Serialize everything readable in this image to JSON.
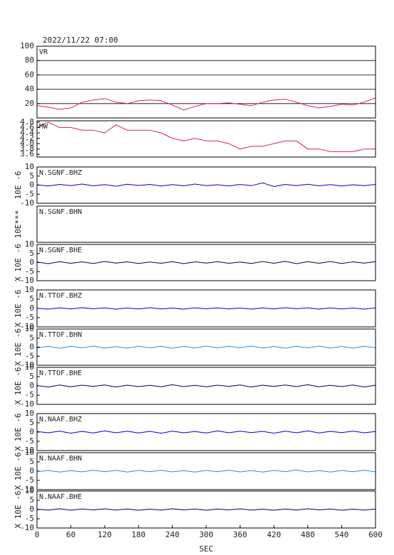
{
  "chart_data": [
    {
      "type": "line",
      "title": "2022/11/22 07:00",
      "label": "VR",
      "color": "#dc2048",
      "grid": true,
      "ylim": [
        0,
        100
      ],
      "yticks": [
        20,
        40,
        60,
        80,
        100
      ],
      "x": [
        0,
        20,
        40,
        60,
        80,
        100,
        120,
        140,
        160,
        180,
        200,
        220,
        240,
        260,
        280,
        300,
        320,
        340,
        360,
        380,
        400,
        420,
        440,
        460,
        480,
        500,
        520,
        540,
        560,
        580,
        600
      ],
      "values": [
        17,
        15,
        12,
        14,
        22,
        25,
        27,
        22,
        20,
        24,
        25,
        24,
        18,
        11,
        16,
        20,
        20,
        21,
        19,
        17,
        22,
        25,
        26,
        22,
        17,
        14,
        16,
        19,
        18,
        22,
        28
      ]
    },
    {
      "type": "line",
      "label": "MW",
      "color": "#dc2048",
      "ylim": [
        3.5,
        4.85
      ],
      "yticks": [
        3.6,
        3.8,
        {
          "value": 4,
          "label": "4.0"
        },
        4.2,
        4.4,
        4.6,
        4.8
      ],
      "x": [
        0,
        20,
        40,
        60,
        80,
        100,
        120,
        140,
        160,
        180,
        200,
        220,
        240,
        260,
        280,
        300,
        320,
        340,
        360,
        380,
        400,
        420,
        440,
        460,
        480,
        500,
        520,
        540,
        560,
        580,
        600
      ],
      "values": [
        4.6,
        4.8,
        4.6,
        4.6,
        4.5,
        4.5,
        4.4,
        4.7,
        4.5,
        4.5,
        4.5,
        4.4,
        4.2,
        4.1,
        4.2,
        4.1,
        4.1,
        4.0,
        3.8,
        3.9,
        3.9,
        4.0,
        4.1,
        4.1,
        3.8,
        3.8,
        3.7,
        3.7,
        3.7,
        3.8,
        3.8
      ]
    },
    {
      "type": "line",
      "label": "N.SGNF.BHZ",
      "ylabel": "10E -6",
      "color": "#0000c8",
      "ylim": [
        -10,
        10
      ],
      "yticks": [
        -10,
        -5,
        0,
        5,
        10
      ],
      "x": [
        0,
        20,
        40,
        60,
        80,
        100,
        120,
        140,
        160,
        180,
        200,
        220,
        240,
        260,
        280,
        300,
        320,
        340,
        360,
        380,
        400,
        420,
        440,
        460,
        480,
        500,
        520,
        540,
        560,
        580,
        600
      ],
      "values": [
        0.2,
        -0.5,
        0.4,
        -0.3,
        0.6,
        -0.4,
        0.3,
        -0.6,
        0.5,
        -0.2,
        0.4,
        -0.5,
        0.3,
        -0.4,
        0.6,
        -0.3,
        0.2,
        -0.5,
        0.4,
        -0.3,
        1.2,
        -0.8,
        0.4,
        -0.3,
        0.5,
        -0.4,
        0.3,
        -0.5,
        0.2,
        -0.3,
        0.4
      ]
    },
    {
      "type": "line",
      "label": "N.SGNF.BHN",
      "ylabel": "10E***"
    },
    {
      "type": "line",
      "label": "N.SGNF.BHE",
      "ylabel": "X 10E -6",
      "color": "#000060",
      "ylim": [
        -10,
        10
      ],
      "yticks": [
        -10,
        -5,
        0,
        5,
        10
      ],
      "x": [
        0,
        20,
        40,
        60,
        80,
        100,
        120,
        140,
        160,
        180,
        200,
        220,
        240,
        260,
        280,
        300,
        320,
        340,
        360,
        380,
        400,
        420,
        440,
        460,
        480,
        500,
        520,
        540,
        560,
        580,
        600
      ],
      "values": [
        0.3,
        -0.6,
        0.5,
        -0.4,
        0.4,
        -0.5,
        0.6,
        -0.3,
        0.4,
        -0.5,
        0.3,
        -0.4,
        0.5,
        -0.6,
        0.4,
        -0.3,
        0.5,
        -0.4,
        0.3,
        -0.5,
        0.6,
        -0.4,
        0.7,
        -0.6,
        0.5,
        -0.4,
        0.6,
        -0.5,
        0.4,
        -0.3,
        0.5
      ]
    },
    {
      "type": "line",
      "label": "N.TTOF.BHZ",
      "ylabel": "X 10E -6",
      "color": "#0000c8",
      "ylim": [
        -10,
        10
      ],
      "yticks": [
        -10,
        -5,
        0,
        5,
        10
      ],
      "x": [
        0,
        20,
        40,
        60,
        80,
        100,
        120,
        140,
        160,
        180,
        200,
        220,
        240,
        260,
        280,
        300,
        320,
        340,
        360,
        380,
        400,
        420,
        440,
        460,
        480,
        500,
        520,
        540,
        560,
        580,
        600
      ],
      "values": [
        0.1,
        -0.4,
        0.3,
        -0.3,
        0.4,
        -0.2,
        0.3,
        -0.4,
        0.2,
        -0.3,
        0.4,
        -0.3,
        0.2,
        -0.4,
        0.3,
        -0.2,
        0.3,
        -0.3,
        0.2,
        -0.4,
        0.3,
        -0.3,
        0.4,
        -0.2,
        0.3,
        -0.4,
        0.3,
        -0.3,
        0.2,
        -0.4,
        0.3
      ]
    },
    {
      "type": "line",
      "label": "N.TTOF.BHN",
      "ylabel": "X 10E -6",
      "color": "#2a8fd8",
      "ylim": [
        -10,
        10
      ],
      "yticks": [
        -10,
        -5,
        0,
        5,
        10
      ],
      "x": [
        0,
        20,
        40,
        60,
        80,
        100,
        120,
        140,
        160,
        180,
        200,
        220,
        240,
        260,
        280,
        300,
        320,
        340,
        360,
        380,
        400,
        420,
        440,
        460,
        480,
        500,
        520,
        540,
        560,
        580,
        600
      ],
      "values": [
        -0.5,
        0.4,
        -0.6,
        0.5,
        -0.4,
        0.6,
        -0.5,
        0.3,
        -0.6,
        0.5,
        -0.4,
        0.5,
        -0.6,
        0.4,
        -0.5,
        0.6,
        -0.4,
        0.5,
        -0.3,
        0.6,
        -0.5,
        0.4,
        -0.6,
        0.5,
        -0.4,
        0.6,
        -0.5,
        0.4,
        -0.6,
        0.5,
        -0.3
      ]
    },
    {
      "type": "line",
      "label": "N.TTOF.BHE",
      "ylabel": "X 10E -6",
      "color": "#000060",
      "ylim": [
        -10,
        10
      ],
      "yticks": [
        -10,
        -5,
        0,
        5,
        10
      ],
      "x": [
        0,
        20,
        40,
        60,
        80,
        100,
        120,
        140,
        160,
        180,
        200,
        220,
        240,
        260,
        280,
        300,
        320,
        340,
        360,
        380,
        400,
        420,
        440,
        460,
        480,
        500,
        520,
        540,
        560,
        580,
        600
      ],
      "values": [
        0.2,
        -0.6,
        0.5,
        -0.5,
        0.4,
        -0.3,
        0.5,
        -0.6,
        0.4,
        -0.4,
        0.3,
        -0.5,
        0.6,
        -0.4,
        0.3,
        -0.5,
        0.4,
        -0.3,
        0.5,
        -0.6,
        0.4,
        -0.3,
        0.5,
        -0.4,
        0.6,
        -0.5,
        0.3,
        -0.4,
        0.5,
        -0.6,
        0.4
      ]
    },
    {
      "type": "line",
      "label": "N.NAAF.BHZ",
      "ylabel": "X 10E -6",
      "color": "#0000c8",
      "ylim": [
        -10,
        10
      ],
      "yticks": [
        -10,
        -5,
        0,
        5,
        10
      ],
      "x": [
        0,
        20,
        40,
        60,
        80,
        100,
        120,
        140,
        160,
        180,
        200,
        220,
        240,
        260,
        280,
        300,
        320,
        340,
        360,
        380,
        400,
        420,
        440,
        460,
        480,
        500,
        520,
        540,
        560,
        580,
        600
      ],
      "values": [
        0.3,
        -0.4,
        0.5,
        -0.6,
        0.4,
        -0.5,
        0.6,
        -0.4,
        0.5,
        -0.5,
        0.4,
        -0.6,
        0.5,
        -0.4,
        0.3,
        -0.5,
        0.6,
        -0.4,
        0.5,
        -0.3,
        0.4,
        -0.6,
        0.5,
        -0.4,
        0.6,
        -0.5,
        0.4,
        -0.3,
        0.5,
        -0.4,
        0.3
      ]
    },
    {
      "type": "line",
      "label": "N.NAAF.BHN",
      "ylabel": "X 10E -6",
      "color": "#2a8fd8",
      "ylim": [
        -10,
        10
      ],
      "yticks": [
        -10,
        -5,
        0,
        5,
        10
      ],
      "x": [
        0,
        20,
        40,
        60,
        80,
        100,
        120,
        140,
        160,
        180,
        200,
        220,
        240,
        260,
        280,
        300,
        320,
        340,
        360,
        380,
        400,
        420,
        440,
        460,
        480,
        500,
        520,
        540,
        560,
        580,
        600
      ],
      "values": [
        -0.3,
        0.4,
        -0.5,
        0.3,
        -0.4,
        0.5,
        -0.3,
        0.4,
        -0.5,
        0.4,
        -0.3,
        0.5,
        -0.4,
        0.3,
        -0.5,
        0.4,
        -0.3,
        0.5,
        -0.4,
        0.3,
        -0.5,
        0.4,
        -0.3,
        0.6,
        -0.4,
        0.3,
        -0.5,
        0.4,
        -0.3,
        0.5,
        -0.4
      ]
    },
    {
      "type": "line",
      "label": "N.NAAF.BHE",
      "ylabel": "X 10E -6",
      "color": "#000060",
      "ylim": [
        -10,
        10
      ],
      "yticks": [
        -10,
        -5,
        0,
        5,
        10
      ],
      "xlim": [
        0,
        600
      ],
      "xticks": [
        0,
        60,
        120,
        180,
        240,
        300,
        360,
        420,
        480,
        540,
        600
      ],
      "xlabel": "SEC",
      "x": [
        0,
        20,
        40,
        60,
        80,
        100,
        120,
        140,
        160,
        180,
        200,
        220,
        240,
        260,
        280,
        300,
        320,
        340,
        360,
        380,
        400,
        420,
        440,
        460,
        480,
        500,
        520,
        540,
        560,
        580,
        600
      ],
      "values": [
        0.2,
        -0.3,
        0.4,
        -0.4,
        0.3,
        -0.2,
        0.4,
        -0.3,
        0.3,
        -0.4,
        0.2,
        -0.3,
        0.4,
        -0.2,
        0.3,
        -0.4,
        0.3,
        -0.2,
        0.4,
        -0.3,
        0.2,
        -0.4,
        0.3,
        -0.3,
        0.4,
        -0.2,
        0.3,
        -0.4,
        0.2,
        -0.3,
        0.3
      ]
    }
  ]
}
